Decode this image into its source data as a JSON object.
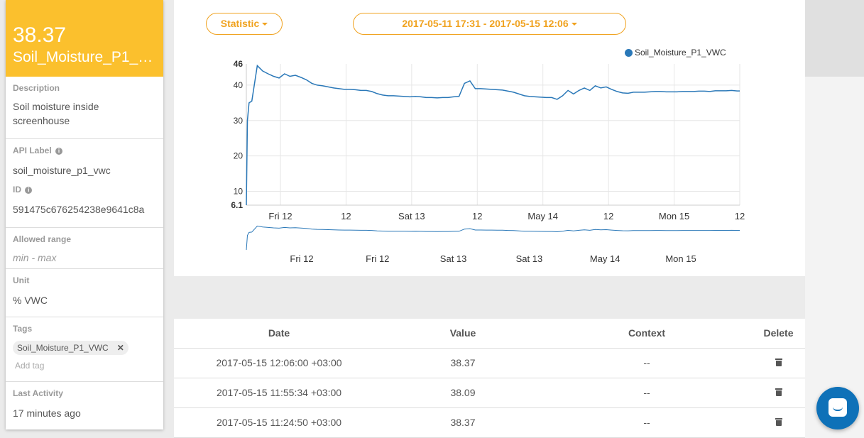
{
  "variable": {
    "current_value": "38.37",
    "name": "Soil_Moisture_P1_VWC",
    "name_display": "Soil_Moisture_P1_V..."
  },
  "sidebar": {
    "description_label": "Description",
    "description_value": "Soil moisture inside screenhouse",
    "api_label_label": "API Label",
    "api_label_value": "soil_moisture_p1_vwc",
    "id_label": "ID",
    "id_value": "591475c676254238e9641c8a",
    "allowed_range_label": "Allowed range",
    "allowed_range_value": "min - max",
    "unit_label": "Unit",
    "unit_value": "% VWC",
    "tags_label": "Tags",
    "tag_chip": "Soil_Moisture_P1_VWC",
    "add_tag_placeholder": "Add tag",
    "last_activity_label": "Last Activity",
    "last_activity_value": "17 minutes ago"
  },
  "toolbar": {
    "statistic_label": "Statistic",
    "date_range_label": "2017-05-11 17:31 - 2017-05-15 12:06"
  },
  "colors": {
    "accent": "#fbc02d",
    "pill": "#f0a21e",
    "series": "#2a78b8",
    "chat": "#0e71b8"
  },
  "chart_data": {
    "type": "line",
    "title": "",
    "xlabel": "",
    "ylabel": "",
    "ylim": [
      6.1,
      46
    ],
    "yticks": [
      "46",
      "40",
      "30",
      "20",
      "10",
      "6.1"
    ],
    "xticks": [
      "Fri 12",
      "12",
      "Sat 13",
      "12",
      "May 14",
      "12",
      "Mon 15",
      "12"
    ],
    "navigator_ticks": [
      "Fri 12",
      "Fri 12",
      "Sat 13",
      "Sat 13",
      "May 14",
      "Mon 15"
    ],
    "grid": true,
    "legend_position": "top-right",
    "series": [
      {
        "name": "Soil_Moisture_P1_VWC",
        "x": [
          0,
          0.2,
          0.5,
          1,
          2,
          3,
          4,
          5,
          6,
          7,
          8,
          9,
          10,
          11,
          12,
          13,
          14,
          15,
          16,
          17,
          18,
          19,
          20,
          21,
          22,
          23,
          24,
          25,
          26,
          27,
          28,
          29,
          30,
          31,
          32,
          33,
          34,
          35,
          36,
          37,
          38,
          39,
          40,
          41,
          42,
          43,
          44,
          45,
          46,
          47,
          48,
          49,
          50,
          51,
          52,
          53,
          54,
          55,
          56,
          57,
          58,
          59,
          60,
          61,
          62,
          63,
          64,
          65,
          66,
          67,
          68,
          69,
          70,
          71,
          72,
          73,
          74,
          75,
          76,
          77,
          78,
          79,
          80,
          81,
          82,
          83,
          84,
          85,
          86,
          87,
          88,
          89,
          90,
          90.5
        ],
        "values": [
          6.1,
          30,
          35,
          35.5,
          45.5,
          44,
          43.2,
          42.5,
          42,
          43.2,
          42.5,
          42.8,
          42.2,
          41.5,
          40.5,
          40,
          39.8,
          39.5,
          39.2,
          39,
          38.8,
          38.8,
          38.7,
          38.5,
          38.5,
          38.2,
          37.6,
          37.2,
          37,
          37,
          36.9,
          36.8,
          36.7,
          36.8,
          36.7,
          36.5,
          36.5,
          36.4,
          36.5,
          36.5,
          36.7,
          36.8,
          40.5,
          41.2,
          39,
          39,
          38.9,
          38.8,
          38.7,
          38.6,
          38.3,
          38,
          37.5,
          37,
          36.8,
          36.7,
          36.6,
          36.5,
          36.5,
          36,
          37,
          38.5,
          37.5,
          38.5,
          39.2,
          38.5,
          39.8,
          39.2,
          39.5,
          38.8,
          38.2,
          37.8,
          37.7,
          38,
          38,
          38,
          38.1,
          38.2,
          38.2,
          38.1,
          38.1,
          38.1,
          38.2,
          38.2,
          38.2,
          38.3,
          38.3,
          38.2,
          38.4,
          38.4,
          38.4,
          38.5,
          38.37,
          38.37
        ]
      }
    ]
  },
  "table": {
    "headers": {
      "date": "Date",
      "value": "Value",
      "context": "Context",
      "delete": "Delete"
    },
    "rows": [
      {
        "date": "2017-05-15 12:06:00 +03:00",
        "value": "38.37",
        "context": "--"
      },
      {
        "date": "2017-05-15 11:55:34 +03:00",
        "value": "38.09",
        "context": "--"
      },
      {
        "date": "2017-05-15 11:24:50 +03:00",
        "value": "38.37",
        "context": "--"
      }
    ]
  }
}
